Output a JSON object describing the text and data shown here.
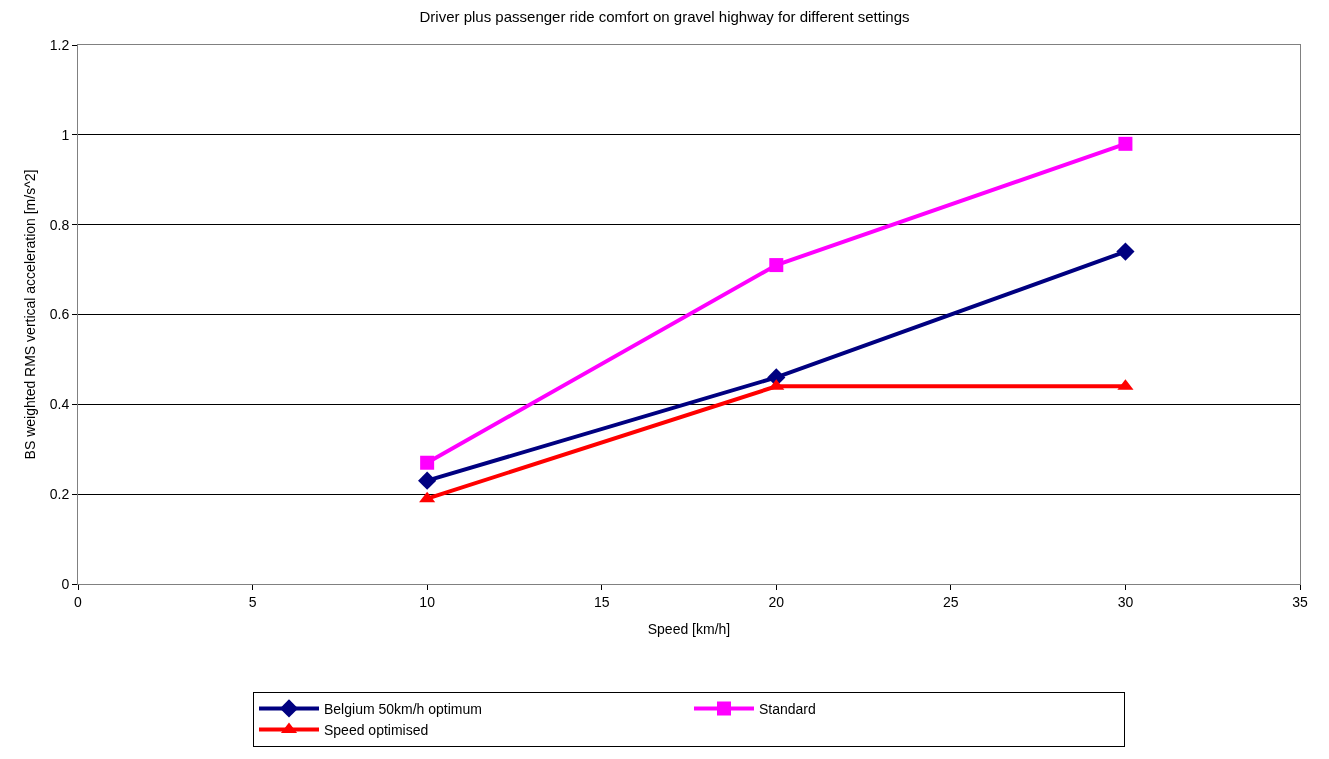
{
  "chart_data": {
    "type": "line",
    "title": "Driver plus passenger ride comfort on gravel highway for different settings",
    "xlabel": "Speed [km/h]",
    "ylabel": "BS weighted RMS vertical acceleration [m/s^2]",
    "x": [
      10,
      20,
      30
    ],
    "series": [
      {
        "name": "Belgium 50km/h optimum",
        "color": "#000080",
        "marker": "diamond",
        "values": [
          0.23,
          0.46,
          0.74
        ]
      },
      {
        "name": "Standard",
        "color": "#ff00ff",
        "marker": "square",
        "values": [
          0.27,
          0.71,
          0.98
        ]
      },
      {
        "name": "Speed optimised",
        "color": "#ff0000",
        "marker": "triangle",
        "values": [
          0.19,
          0.44,
          0.44
        ]
      }
    ],
    "xlim": [
      0,
      35
    ],
    "xticks": [
      0,
      5,
      10,
      15,
      20,
      25,
      30,
      35
    ],
    "ylim": [
      0,
      1.2
    ],
    "yticks": [
      0,
      0.2,
      0.4,
      0.6,
      0.8,
      1,
      1.2
    ],
    "grid": "y",
    "legend": "bottom",
    "line_style": "solid"
  }
}
